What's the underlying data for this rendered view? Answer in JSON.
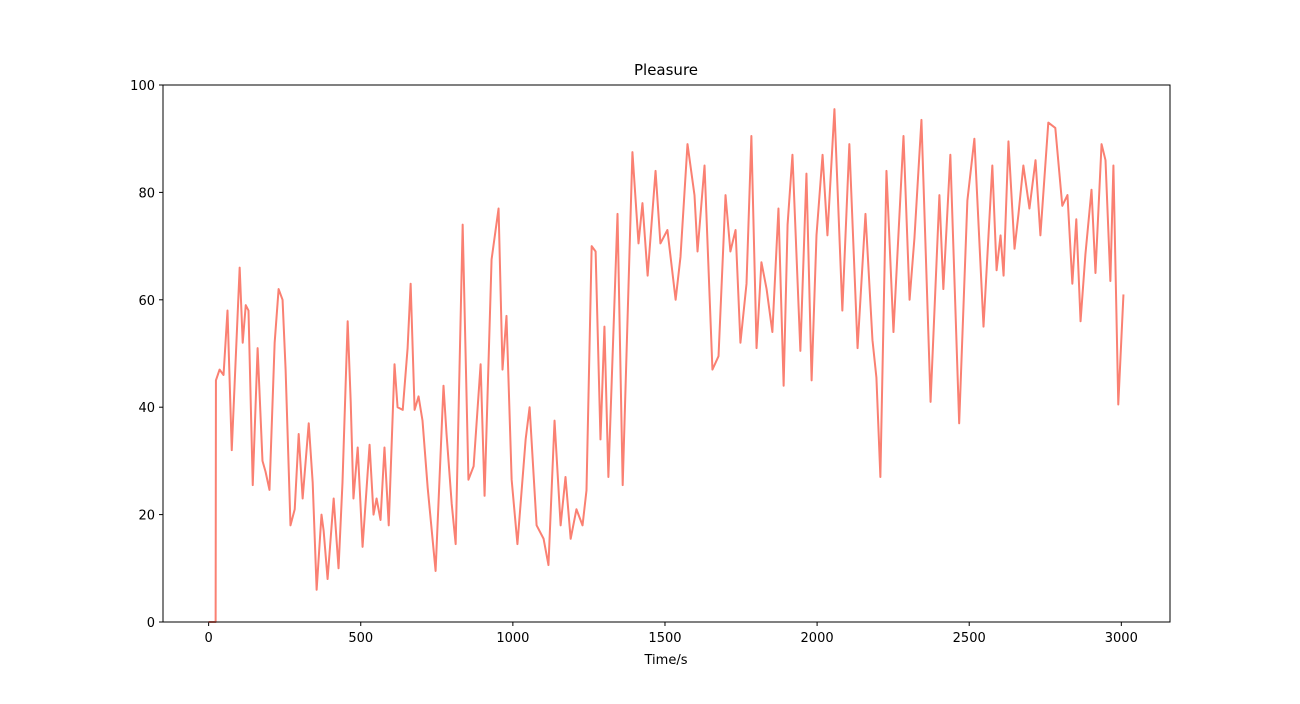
{
  "chart_data": {
    "type": "line",
    "title": "Pleasure",
    "xlabel": "Time/s",
    "xlim": [
      -150,
      3160
    ],
    "ylim": [
      0,
      100
    ],
    "xticks": [
      0,
      500,
      1000,
      1500,
      2000,
      2500,
      3000
    ],
    "yticks": [
      0,
      20,
      40,
      60,
      80,
      100
    ],
    "grid": false,
    "series": [
      {
        "name": "Pleasure",
        "color": "#fa8072",
        "x": [
          0,
          23,
          24,
          36,
          49,
          62,
          76,
          102,
          112,
          122,
          131,
          145,
          161,
          177,
          187,
          200,
          217,
          230,
          243,
          253,
          269,
          283,
          296,
          309,
          329,
          342,
          355,
          371,
          378,
          391,
          411,
          427,
          440,
          457,
          467,
          476,
          490,
          506,
          529,
          542,
          552,
          565,
          578,
          592,
          611,
          621,
          638,
          654,
          664,
          677,
          690,
          703,
          720,
          746,
          772,
          782,
          799,
          812,
          835,
          854,
          871,
          894,
          907,
          930,
          953,
          966,
          979,
          996,
          1015,
          1042,
          1055,
          1078,
          1101,
          1117,
          1137,
          1157,
          1173,
          1190,
          1209,
          1229,
          1242,
          1259,
          1272,
          1288,
          1301,
          1314,
          1344,
          1361,
          1393,
          1413,
          1426,
          1443,
          1469,
          1485,
          1508,
          1535,
          1551,
          1574,
          1597,
          1607,
          1630,
          1656,
          1676,
          1699,
          1715,
          1732,
          1748,
          1768,
          1784,
          1801,
          1817,
          1834,
          1853,
          1873,
          1890,
          1903,
          1919,
          1945,
          1965,
          1982,
          1998,
          2018,
          2034,
          2057,
          2083,
          2106,
          2133,
          2159,
          2182,
          2195,
          2208,
          2228,
          2251,
          2284,
          2304,
          2320,
          2343,
          2373,
          2402,
          2415,
          2438,
          2467,
          2494,
          2517,
          2547,
          2576,
          2590,
          2603,
          2613,
          2629,
          2649,
          2662,
          2678,
          2698,
          2718,
          2734,
          2760,
          2783,
          2806,
          2823,
          2839,
          2852,
          2866,
          2882,
          2902,
          2915,
          2935,
          2948,
          2964,
          2974,
          2990,
          3007
        ],
        "values": [
          0,
          0,
          45,
          47,
          46,
          58,
          32,
          66,
          52,
          59,
          58,
          25.5,
          51,
          30,
          28,
          24.6,
          52,
          62,
          60,
          47,
          18,
          21,
          35,
          23,
          37,
          26,
          6,
          20,
          17,
          8,
          23,
          10,
          26,
          56,
          41,
          23,
          32.5,
          14,
          33,
          20,
          23,
          19,
          32.5,
          18,
          48,
          40,
          39.5,
          51,
          63,
          39.5,
          42,
          37.5,
          25,
          9.5,
          44,
          35,
          22,
          14.5,
          74,
          26.5,
          29,
          48,
          23.5,
          67.5,
          77,
          47,
          57,
          26.5,
          14.5,
          34,
          40,
          18,
          15.5,
          10.6,
          37.5,
          18,
          27,
          15.5,
          21,
          18,
          24.5,
          70,
          69,
          34,
          55,
          27,
          76,
          25.5,
          87.5,
          70.5,
          78,
          64.5,
          84,
          70.5,
          73,
          60,
          68,
          89,
          79.5,
          69,
          85,
          47,
          49.5,
          79.5,
          69,
          73,
          52,
          63,
          90.5,
          51,
          67,
          62,
          54,
          77,
          44,
          74,
          87,
          50.5,
          83.5,
          45,
          72,
          87,
          72,
          95.5,
          58,
          89,
          51,
          76,
          52.5,
          45.5,
          27,
          84,
          54,
          90.5,
          60,
          71.5,
          93.5,
          41,
          79.5,
          62,
          87,
          37,
          78.5,
          90,
          55,
          85,
          65.5,
          72,
          64.5,
          89.5,
          69.5,
          76,
          85,
          77,
          86,
          72,
          93,
          92,
          77.5,
          79.5,
          63,
          75,
          56,
          68.5,
          80.5,
          65,
          89,
          86,
          63.5,
          85,
          40.5,
          61
        ]
      }
    ]
  }
}
